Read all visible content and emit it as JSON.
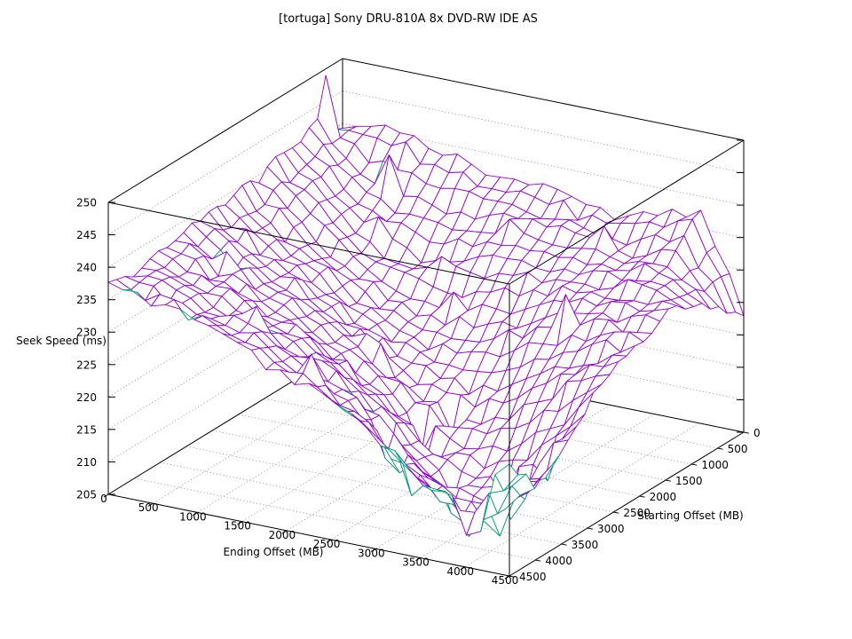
{
  "chart_data": {
    "type": "surface3d",
    "title": "[tortuga] Sony DRU-810A 8x DVD-RW IDE AS",
    "xlabel": "Ending Offset (MB)",
    "ylabel": "Starting Offset (MB)",
    "zlabel": "Seek Speed (ms)",
    "xticks": [
      0,
      500,
      1000,
      1500,
      2000,
      2500,
      3000,
      3500,
      4000,
      4500
    ],
    "yticks": [
      0,
      500,
      1000,
      1500,
      2000,
      2500,
      3000,
      3500,
      4000,
      4500
    ],
    "zticks": [
      205,
      210,
      215,
      220,
      225,
      230,
      235,
      240,
      245,
      250
    ],
    "xlim": [
      0,
      4500
    ],
    "ylim": [
      0,
      4500
    ],
    "zlim": [
      205,
      250
    ],
    "grid": true,
    "legend": "none",
    "surface": {
      "comment": "z = seek speed (ms); rows = starting offset (y) 0..4500 step 500, cols = ending offset (x) 0..4500 step 500; high plateau when either offset near 0, valley along x=y diagonal toward front",
      "x": [
        0,
        500,
        1000,
        1500,
        2000,
        2500,
        3000,
        3500,
        4000,
        4500
      ],
      "y": [
        0,
        500,
        1000,
        1500,
        2000,
        2500,
        3000,
        3500,
        4000,
        4500
      ],
      "z": [
        [
          239,
          241,
          239,
          238,
          237,
          236,
          234,
          236,
          238,
          224
        ],
        [
          243,
          236,
          234,
          233,
          233,
          234,
          233,
          232,
          234,
          226
        ],
        [
          241,
          235,
          229,
          228,
          229,
          230,
          231,
          231,
          232,
          230
        ],
        [
          240,
          234,
          228,
          225,
          224,
          225,
          227,
          229,
          230,
          230
        ],
        [
          239,
          233,
          229,
          224,
          221,
          220,
          222,
          225,
          228,
          229
        ],
        [
          239,
          234,
          230,
          225,
          220,
          217,
          216,
          219,
          224,
          227
        ],
        [
          238,
          234,
          231,
          227,
          222,
          216,
          212,
          212,
          217,
          224
        ],
        [
          238,
          235,
          232,
          229,
          225,
          219,
          212,
          209,
          212,
          220
        ],
        [
          237,
          235,
          233,
          231,
          227,
          223,
          217,
          211,
          210,
          216
        ],
        [
          237,
          236,
          234,
          232,
          229,
          226,
          222,
          217,
          214,
          222
        ]
      ]
    },
    "spike": {
      "x": 0,
      "y": 250,
      "z": 249
    },
    "colors": {
      "surface_top": "#9400d3",
      "surface_underside": "#009e73",
      "box": "#000000",
      "grid_dots": "#9c9c9c",
      "text": "#000000",
      "background": "#ffffff"
    }
  }
}
